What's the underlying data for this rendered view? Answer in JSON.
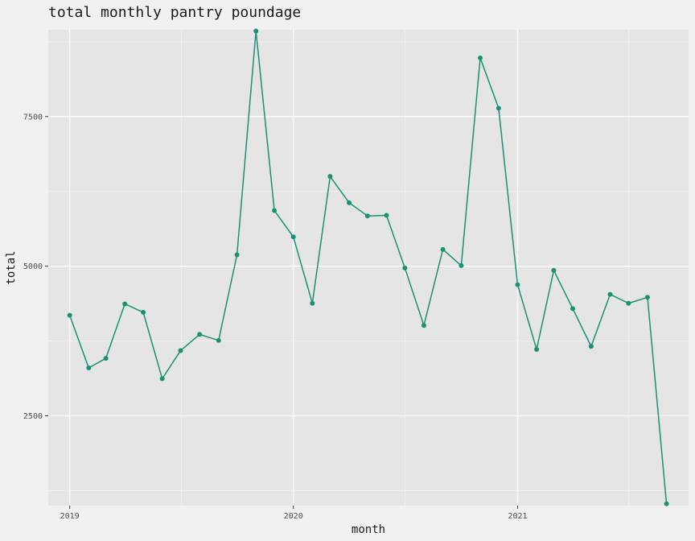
{
  "chart_data": {
    "type": "line",
    "title": "total monthly pantry poundage",
    "xlabel": "month",
    "ylabel": "total",
    "x_ticks": [
      {
        "label": "2019",
        "date": "2019-01-01"
      },
      {
        "label": "2020",
        "date": "2020-01-01"
      },
      {
        "label": "2021",
        "date": "2021-01-01"
      }
    ],
    "y_ticks": [
      2500,
      5000,
      7500
    ],
    "xlim": [
      "2018-11-27",
      "2021-10-07"
    ],
    "ylim": [
      1000,
      8950
    ],
    "grid": true,
    "color": "#1b9173",
    "series": [
      {
        "values": [
          {
            "x": "2019-01-01",
            "y": 4180
          },
          {
            "x": "2019-02-01",
            "y": 3300
          },
          {
            "x": "2019-03-01",
            "y": 3460
          },
          {
            "x": "2019-04-01",
            "y": 4370
          },
          {
            "x": "2019-05-01",
            "y": 4230
          },
          {
            "x": "2019-06-01",
            "y": 3120
          },
          {
            "x": "2019-07-01",
            "y": 3590
          },
          {
            "x": "2019-08-01",
            "y": 3860
          },
          {
            "x": "2019-09-01",
            "y": 3760
          },
          {
            "x": "2019-10-01",
            "y": 5190
          },
          {
            "x": "2019-11-01",
            "y": 8930
          },
          {
            "x": "2019-12-01",
            "y": 5930
          },
          {
            "x": "2020-01-01",
            "y": 5490
          },
          {
            "x": "2020-02-01",
            "y": 4380
          },
          {
            "x": "2020-03-01",
            "y": 6500
          },
          {
            "x": "2020-04-01",
            "y": 6060
          },
          {
            "x": "2020-05-01",
            "y": 5840
          },
          {
            "x": "2020-06-01",
            "y": 5850
          },
          {
            "x": "2020-07-01",
            "y": 4970
          },
          {
            "x": "2020-08-01",
            "y": 4010
          },
          {
            "x": "2020-09-01",
            "y": 5280
          },
          {
            "x": "2020-10-01",
            "y": 5010
          },
          {
            "x": "2020-11-01",
            "y": 8480
          },
          {
            "x": "2020-12-01",
            "y": 7640
          },
          {
            "x": "2021-01-01",
            "y": 4690
          },
          {
            "x": "2021-02-01",
            "y": 3610
          },
          {
            "x": "2021-03-01",
            "y": 4930
          },
          {
            "x": "2021-04-01",
            "y": 4290
          },
          {
            "x": "2021-05-01",
            "y": 3660
          },
          {
            "x": "2021-06-01",
            "y": 4530
          },
          {
            "x": "2021-07-01",
            "y": 4380
          },
          {
            "x": "2021-08-01",
            "y": 4480
          },
          {
            "x": "2021-09-01",
            "y": 1030
          }
        ]
      }
    ]
  }
}
